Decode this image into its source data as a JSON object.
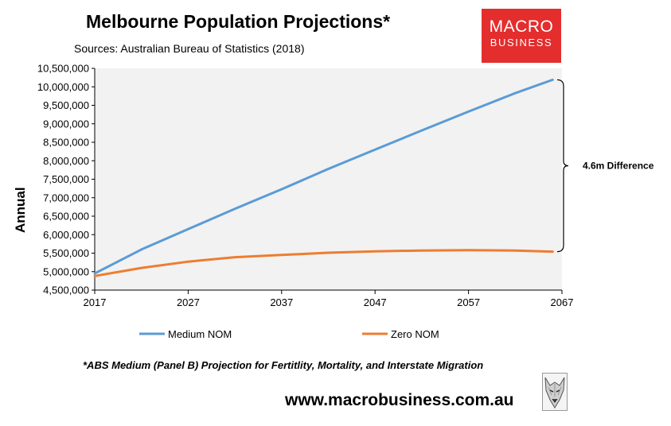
{
  "chart_data": {
    "type": "line",
    "title": "Melbourne Population Projections*",
    "subtitle": "Sources: Australian Bureau of Statistics (2018)",
    "ylabel": "Annual",
    "xlabel": "",
    "xlim": [
      2017,
      2067
    ],
    "ylim": [
      4500000,
      10500000
    ],
    "x_ticks": [
      "2017",
      "2027",
      "2037",
      "2047",
      "2057",
      "2067"
    ],
    "y_ticks": [
      "4,500,000",
      "5,000,000",
      "5,500,000",
      "6,000,000",
      "6,500,000",
      "7,000,000",
      "7,500,000",
      "8,000,000",
      "8,500,000",
      "9,000,000",
      "9,500,000",
      "10,000,000",
      "10,500,000"
    ],
    "grid": false,
    "legend_position": "bottom",
    "series": [
      {
        "name": "Medium NOM",
        "color": "#5b9bd5",
        "x": [
          2017,
          2022,
          2027,
          2032,
          2037,
          2042,
          2047,
          2052,
          2057,
          2062,
          2066
        ],
        "values": [
          4950000,
          5600000,
          6150000,
          6700000,
          7230000,
          7780000,
          8300000,
          8820000,
          9330000,
          9830000,
          10190000
        ]
      },
      {
        "name": "Zero NOM",
        "color": "#ed7d31",
        "x": [
          2017,
          2022,
          2027,
          2032,
          2037,
          2042,
          2047,
          2052,
          2057,
          2062,
          2066
        ],
        "values": [
          4880000,
          5100000,
          5270000,
          5390000,
          5450000,
          5510000,
          5550000,
          5570000,
          5580000,
          5570000,
          5540000
        ]
      }
    ],
    "annotations": [
      {
        "text": "4.6m Difference"
      }
    ]
  },
  "branding": {
    "logo_top": "MACRO",
    "logo_bottom": "BUSINESS",
    "logo_color": "#e42d2d",
    "mascot_icon": "wolf-icon"
  },
  "footer": {
    "footnote": "*ABS Medium (Panel B) Projection for Fertitlity, Mortality, and Interstate Migration",
    "url": "www.macrobusiness.com.au"
  }
}
